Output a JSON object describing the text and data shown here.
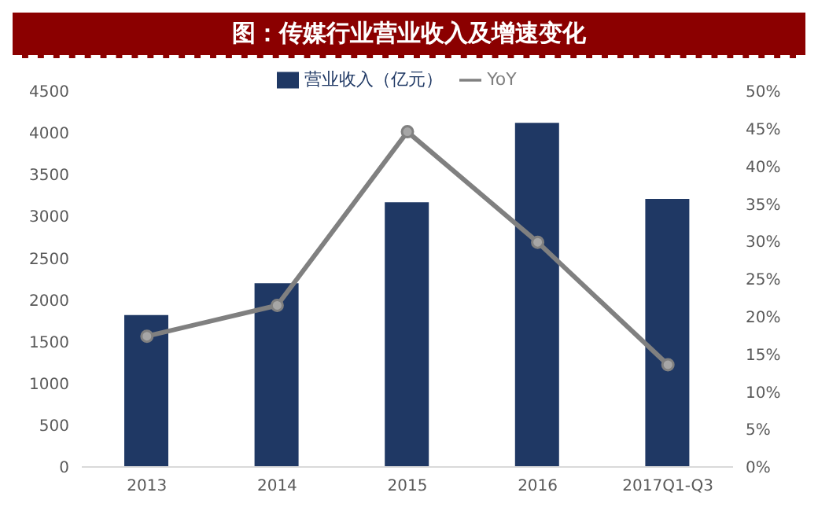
{
  "chart_data": {
    "type": "bar",
    "title": "图：传媒行业营业收入及增速变化",
    "categories": [
      "2013",
      "2014",
      "2015",
      "2016",
      "2017Q1-Q3"
    ],
    "series": [
      {
        "name": "营业收入（亿元）",
        "color": "#1f3864",
        "values": [
          1820,
          2200,
          3170,
          4120,
          3210
        ]
      },
      {
        "name": "YoY",
        "type": "line",
        "axis": "y2",
        "color": "#808080",
        "marker": "circle",
        "values": [
          17.4,
          21.5,
          44.6,
          29.9,
          13.6
        ]
      }
    ],
    "ylim": [
      0,
      4500
    ],
    "yticks": [
      0,
      500,
      1000,
      1500,
      2000,
      2500,
      3000,
      3500,
      4000,
      4500
    ],
    "y2lim": [
      0,
      50
    ],
    "y2ticks": [
      {
        "value": 0,
        "label": "0%"
      },
      {
        "value": 5,
        "label": "5%"
      },
      {
        "value": 10,
        "label": "10%"
      },
      {
        "value": 15,
        "label": "15%"
      },
      {
        "value": 20,
        "label": "20%"
      },
      {
        "value": 25,
        "label": "25%"
      },
      {
        "value": 30,
        "label": "30%"
      },
      {
        "value": 35,
        "label": "35%"
      },
      {
        "value": 40,
        "label": "40%"
      },
      {
        "value": 45,
        "label": "45%"
      },
      {
        "value": 50,
        "label": "50%"
      }
    ],
    "legend": "top",
    "grid": false
  }
}
